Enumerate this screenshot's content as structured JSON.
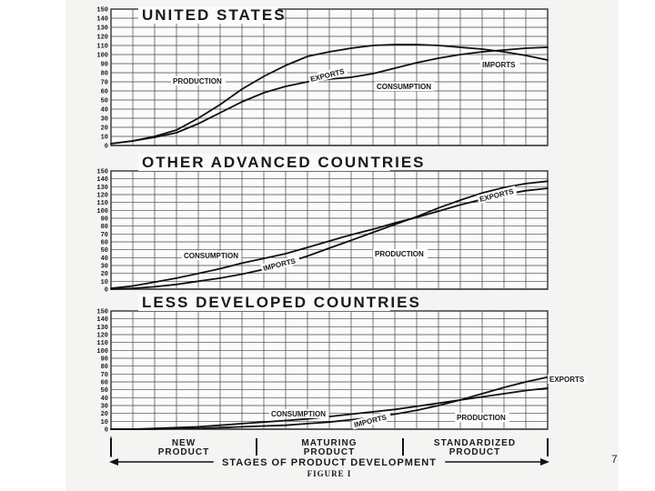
{
  "page_number": "7",
  "x_axis": {
    "title": "STAGES OF PRODUCT DEVELOPMENT",
    "stages": [
      [
        "NEW",
        "PRODUCT"
      ],
      [
        "MATURING",
        "PRODUCT"
      ],
      [
        "STANDARDIZED",
        "PRODUCT"
      ]
    ]
  },
  "caption": "FIGURE I",
  "chart_data": [
    {
      "type": "line",
      "title": "UNITED STATES",
      "ylim": [
        0,
        150
      ],
      "yticks": [
        0,
        10,
        20,
        30,
        40,
        50,
        60,
        70,
        80,
        90,
        100,
        110,
        120,
        130,
        140,
        150
      ],
      "x": [
        0,
        1,
        2,
        3,
        4,
        5,
        6,
        7,
        8,
        9,
        10,
        11,
        12,
        13,
        14,
        15,
        16,
        17,
        18,
        19,
        20
      ],
      "grid": true,
      "series": [
        {
          "name": "PRODUCTION",
          "values": [
            2,
            5,
            10,
            17,
            30,
            45,
            62,
            76,
            88,
            98,
            103,
            107,
            110,
            111,
            111,
            110,
            108,
            106,
            103,
            99,
            94
          ]
        },
        {
          "name": "CONSUMPTION",
          "values": [
            2,
            5,
            9,
            14,
            24,
            36,
            48,
            58,
            65,
            70,
            73,
            75,
            79,
            85,
            91,
            96,
            100,
            103,
            105,
            107,
            108
          ]
        }
      ],
      "annotations": [
        "PRODUCTION",
        "EXPORTS",
        "CONSUMPTION",
        "IMPORTS"
      ]
    },
    {
      "type": "line",
      "title": "OTHER ADVANCED COUNTRIES",
      "ylim": [
        0,
        150
      ],
      "yticks": [
        0,
        10,
        20,
        30,
        40,
        50,
        60,
        70,
        80,
        90,
        100,
        110,
        120,
        130,
        140,
        150
      ],
      "x": [
        0,
        1,
        2,
        3,
        4,
        5,
        6,
        7,
        8,
        9,
        10,
        11,
        12,
        13,
        14,
        15,
        16,
        17,
        18,
        19,
        20
      ],
      "grid": true,
      "series": [
        {
          "name": "CONSUMPTION",
          "values": [
            1,
            4,
            9,
            14,
            20,
            26,
            33,
            39,
            45,
            53,
            61,
            69,
            76,
            84,
            91,
            99,
            107,
            114,
            120,
            125,
            128
          ]
        },
        {
          "name": "PRODUCTION",
          "values": [
            0,
            1,
            3,
            6,
            10,
            14,
            19,
            25,
            33,
            42,
            52,
            62,
            72,
            82,
            92,
            103,
            113,
            122,
            129,
            134,
            137
          ]
        }
      ],
      "annotations": [
        "CONSUMPTION",
        "IMPORTS",
        "PRODUCTION",
        "EXPORTS"
      ]
    },
    {
      "type": "line",
      "title": "LESS DEVELOPED COUNTRIES",
      "ylim": [
        0,
        150
      ],
      "yticks": [
        0,
        10,
        20,
        30,
        40,
        50,
        60,
        70,
        80,
        90,
        100,
        110,
        120,
        130,
        140,
        150
      ],
      "x": [
        0,
        1,
        2,
        3,
        4,
        5,
        6,
        7,
        8,
        9,
        10,
        11,
        12,
        13,
        14,
        15,
        16,
        17,
        18,
        19,
        20
      ],
      "grid": true,
      "series": [
        {
          "name": "CONSUMPTION",
          "values": [
            0,
            0,
            1,
            2,
            3,
            5,
            7,
            9,
            11,
            13,
            16,
            19,
            22,
            25,
            29,
            33,
            37,
            41,
            45,
            49,
            52
          ]
        },
        {
          "name": "PRODUCTION",
          "values": [
            0,
            0,
            0,
            1,
            1,
            2,
            3,
            4,
            5,
            7,
            9,
            12,
            15,
            19,
            24,
            30,
            37,
            45,
            53,
            60,
            66
          ]
        }
      ],
      "annotations": [
        "CONSUMPTION",
        "IMPORTS",
        "PRODUCTION",
        "EXPORTS"
      ]
    }
  ]
}
